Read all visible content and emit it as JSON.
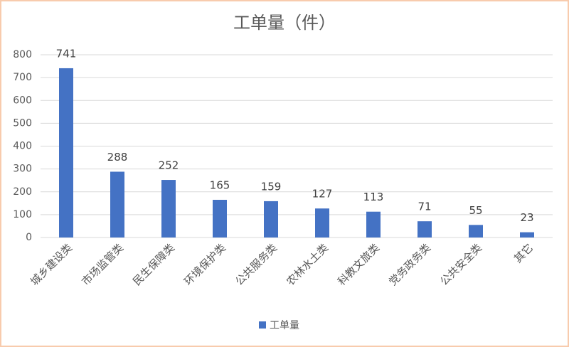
{
  "chart_data": {
    "type": "bar",
    "title": "工单量（件）",
    "categories": [
      "城乡建设类",
      "市场监管类",
      "民生保障类",
      "环境保护类",
      "公共服务类",
      "农林水土类",
      "科教文旅类",
      "党务政务类",
      "公共安全类",
      "其它"
    ],
    "series": [
      {
        "name": "工单量",
        "color": "#4472c4",
        "values": [
          741,
          288,
          252,
          165,
          159,
          127,
          113,
          71,
          55,
          23
        ]
      }
    ],
    "ylim": [
      0,
      800
    ],
    "yticks": [
      0,
      100,
      200,
      300,
      400,
      500,
      600,
      700,
      800
    ],
    "grid": true,
    "legend": "bottom"
  }
}
